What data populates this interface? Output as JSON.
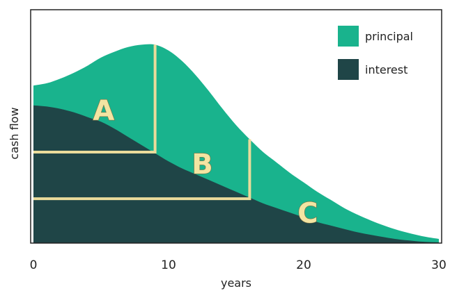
{
  "chart_data": {
    "type": "area",
    "xlabel": "years",
    "ylabel": "cash flow",
    "xlim": [
      0,
      30
    ],
    "ylim": [
      0,
      100
    ],
    "x_ticks": [
      "0",
      "10",
      "20",
      "30"
    ],
    "grid": false,
    "legend_position": "top-right",
    "colors": {
      "principal": "#19b38d",
      "interest": "#1f4547",
      "bracket": "#eadb9b"
    },
    "x": [
      0,
      1,
      2,
      3,
      4,
      5,
      6,
      7,
      8,
      9,
      10,
      11,
      12,
      13,
      14,
      15,
      16,
      17,
      18,
      19,
      20,
      21,
      22,
      23,
      24,
      25,
      26,
      27,
      28,
      29,
      30
    ],
    "series": [
      {
        "name": "interest",
        "values": [
          59,
          58.5,
          57.5,
          56,
          54,
          52,
          49,
          45.5,
          42,
          38.5,
          35,
          32,
          29.5,
          27,
          24.5,
          22,
          19.5,
          17,
          15,
          13,
          11,
          9,
          7.5,
          6,
          4.6,
          3.5,
          2.5,
          1.6,
          1,
          0.5,
          0.3
        ]
      },
      {
        "name": "principal",
        "values": [
          8.5,
          10,
          13,
          17,
          22,
          27.5,
          33,
          38.5,
          43,
          46.5,
          47.5,
          46,
          42.5,
          38,
          33,
          28.5,
          25,
          22,
          19.5,
          17,
          15,
          13,
          11,
          9,
          7.5,
          6.1,
          4.9,
          3.9,
          3,
          2.2,
          1.5
        ]
      }
    ],
    "annotations": [
      {
        "text": "A",
        "x": 5.2,
        "y": 56
      },
      {
        "text": "B",
        "x": 12.5,
        "y": 33
      },
      {
        "text": "C",
        "x": 20.3,
        "y": 12
      }
    ],
    "brackets": [
      {
        "x_end": 9,
        "level": 39
      },
      {
        "x_end": 16,
        "level": 19
      }
    ]
  }
}
